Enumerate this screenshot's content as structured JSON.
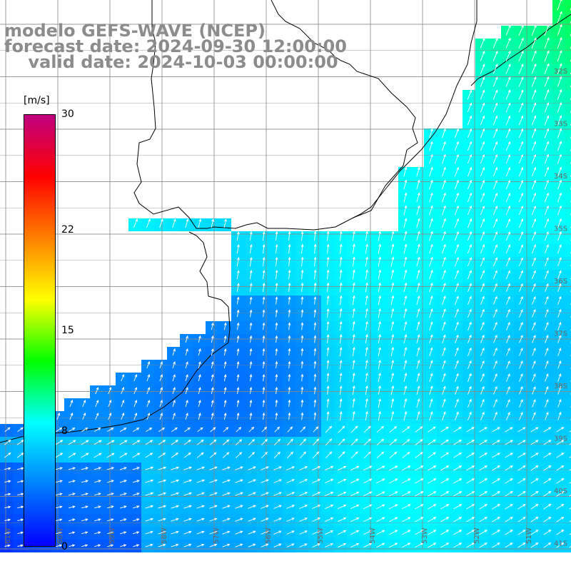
{
  "title": {
    "line1": "modelo GEFS-WAVE (NCEP)",
    "line2": "forecast date: 2024-09-30 12:00:00",
    "line3": "    valid date: 2024-10-03 00:00:00"
  },
  "colorbar": {
    "unit": "[m/s]",
    "ticks": [
      {
        "label": "30",
        "value": 30
      },
      {
        "label": "22",
        "value": 22
      },
      {
        "label": "15",
        "value": 15
      },
      {
        "label": "8",
        "value": 8
      },
      {
        "label": "0",
        "value": 0
      }
    ],
    "colors": [
      "#0000ff",
      "#0080ff",
      "#00ffff",
      "#00ff00",
      "#ffff00",
      "#ff8000",
      "#ff0000",
      "#c00080"
    ]
  },
  "axes": {
    "lat_labels": [
      "32S",
      "33S",
      "34S",
      "35S",
      "36S",
      "37S",
      "38S",
      "39S",
      "40S",
      "41S"
    ],
    "lon_labels": [
      "61W",
      "60W",
      "59W",
      "58W",
      "57W",
      "56W",
      "55W",
      "54W",
      "53W",
      "52W",
      "51W"
    ]
  },
  "map": {
    "variable": "wind",
    "land_color": "#ffffff",
    "grid": true
  }
}
